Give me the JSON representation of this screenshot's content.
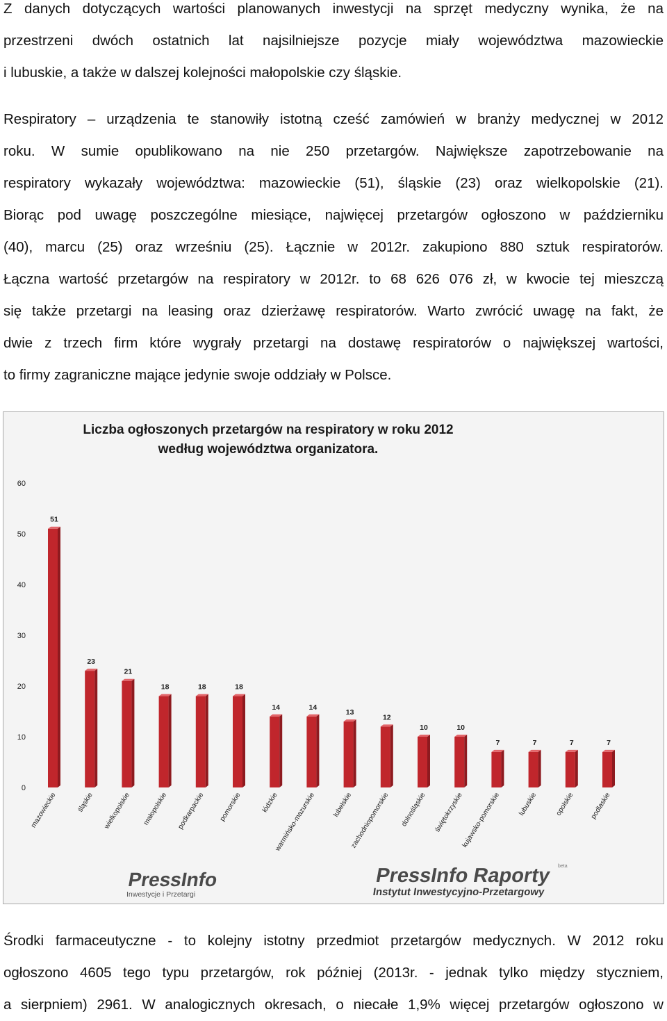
{
  "paragraph1": {
    "lines": [
      "Z danych dotyczących wartości planowanych inwestycji na sprzęt medyczny wynika, że na",
      "przestrzeni dwóch ostatnich lat najsilniejsze pozycje miały województwa mazowieckie",
      "i lubuskie, a także w dalszej kolejności małopolskie czy śląskie."
    ]
  },
  "paragraph2": {
    "lines": [
      "Respiratory – urządzenia te stanowiły istotną cześć zamówień w branży medycznej w 2012",
      "roku. W sumie opublikowano na nie 250 przetargów. Największe zapotrzebowanie na",
      "respiratory wykazały województwa: mazowieckie (51), śląskie (23) oraz wielkopolskie (21).",
      "Biorąc pod uwagę poszczególne miesiące, najwięcej przetargów ogłoszono w październiku",
      "(40), marcu (25) oraz wrześniu (25). Łącznie w 2012r. zakupiono 880 sztuk respiratorów.",
      "Łączna wartość przetargów na respiratory w 2012r. to 68 626 076 zł, w kwocie tej mieszczą",
      "się także przetargi na leasing oraz dzierżawę respiratorów. Warto zwrócić uwagę na fakt, że",
      "dwie z trzech firm które wygrały przetargi na dostawę respiratorów  o największej wartości,",
      "to firmy zagraniczne mające jedynie swoje oddziały w Polsce."
    ]
  },
  "paragraph3": {
    "lines": [
      "Środki farmaceutyczne - to kolejny istotny przedmiot przetargów medycznych. W 2012 roku",
      "ogłoszono 4605 tego typu przetargów, rok później (2013r. - jednak tylko między styczniem,",
      "a sierpniem) 2961. W analogicznych okresach, o niecałe 1,9% więcej przetargów ogłoszono w"
    ]
  },
  "chart_data": {
    "type": "bar",
    "title": [
      "Liczba ogłoszonych przetargów na respiratory w roku 2012",
      "według województwa organizatora."
    ],
    "categories": [
      "mazowieckie",
      "śląskie",
      "wielkopolskie",
      "małopolskie",
      "podkarpackie",
      "pomorskie",
      "łódzkie",
      "warmińsko-mazurskie",
      "lubelskie",
      "zachodniopomorskie",
      "dolnośląskie",
      "świętokrzyskie",
      "kujawsko-pomorskie",
      "lubuskie",
      "opolskie",
      "podlaskie"
    ],
    "values": [
      51,
      23,
      21,
      18,
      18,
      18,
      14,
      14,
      13,
      12,
      10,
      10,
      7,
      7,
      7,
      7
    ],
    "ylim": [
      0,
      60
    ],
    "yticks": [
      "0",
      "10",
      "20",
      "30",
      "40",
      "50",
      "60"
    ],
    "grid": false,
    "bar_color": "#c0262c",
    "bar_side_color": "#8e1a1f",
    "bar_top_color": "#e2666a"
  },
  "logos": {
    "left": {
      "name": "PressInfo",
      "tagline": "Inwestycje i Przetargi"
    },
    "right": {
      "name": "PressInfo Raporty",
      "beta": "beta",
      "tagline": "Instytut Inwestycyjno-Przetargowy"
    }
  }
}
